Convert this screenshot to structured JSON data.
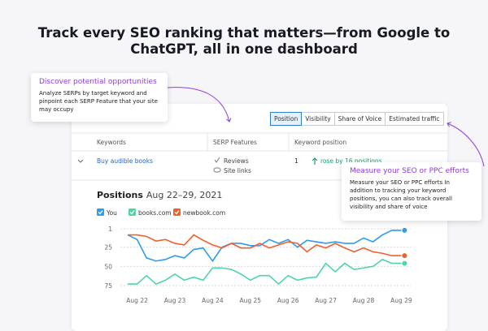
{
  "header": {
    "title": "Track every SEO ranking that matters—from Google to ChatGPT, all in one dashboard"
  },
  "callouts": [
    {
      "title": "Discover potential opportunities",
      "body": "Analyze SERPs by target keyword and pinpoint each SERP Feature that your site may occupy"
    },
    {
      "title": "Measure your SEO or PPC efforts",
      "body": "Measure your SEO or PPC efforts In addition to tracking your keyword positions, you can also track overall visibility and share of voice"
    }
  ],
  "tabs": [
    "Position",
    "Visibility",
    "Share of Voice",
    "Estimated traffic"
  ],
  "table": {
    "headers": [
      "Keywords",
      "SERP Features",
      "Keyword position"
    ],
    "row": {
      "keyword": "Buy audible books",
      "features": [
        "Reviews",
        "Site links"
      ],
      "position": "1",
      "change": "rose by 16 positions"
    }
  },
  "chart_data": {
    "type": "line",
    "title": "Positions",
    "subtitle": "Aug 22–29, 2021",
    "categories": [
      null,
      "Aug 22",
      null,
      null,
      null,
      "Aug 23",
      null,
      null,
      null,
      "Aug 24",
      null,
      null,
      null,
      "Aug 25",
      null,
      null,
      null,
      "Aug 26",
      null,
      null,
      null,
      "Aug 27",
      null,
      null,
      null,
      "Aug 28",
      null,
      null,
      null,
      "Aug 29"
    ],
    "series": [
      {
        "name": "You",
        "color": "#2d9cec",
        "values": [
          9,
          15,
          39,
          43,
          41,
          36,
          39,
          28,
          26,
          43,
          25,
          20,
          20,
          23,
          23,
          15,
          20,
          15,
          25,
          16,
          18,
          20,
          18,
          20,
          20,
          13,
          18,
          9,
          3,
          3
        ]
      },
      {
        "name": "books.com",
        "color": "#4fd6a0",
        "values": [
          73,
          73,
          62,
          73,
          68,
          60,
          68,
          64,
          68,
          52,
          52,
          54,
          60,
          68,
          62,
          62,
          73,
          62,
          68,
          65,
          64,
          46,
          57,
          46,
          54,
          52,
          50,
          41,
          46,
          46
        ]
      },
      {
        "name": "newbook.com",
        "color": "#f0602c",
        "values": [
          9,
          9,
          11,
          17,
          15,
          20,
          22,
          9,
          16,
          22,
          26,
          20,
          26,
          26,
          20,
          26,
          22,
          18,
          20,
          31,
          22,
          26,
          20,
          26,
          31,
          26,
          31,
          33,
          36,
          36
        ]
      }
    ],
    "ylim": [
      1,
      75
    ],
    "yticks": [
      1,
      25,
      50,
      75
    ],
    "y_inverted": true,
    "grid": true
  }
}
